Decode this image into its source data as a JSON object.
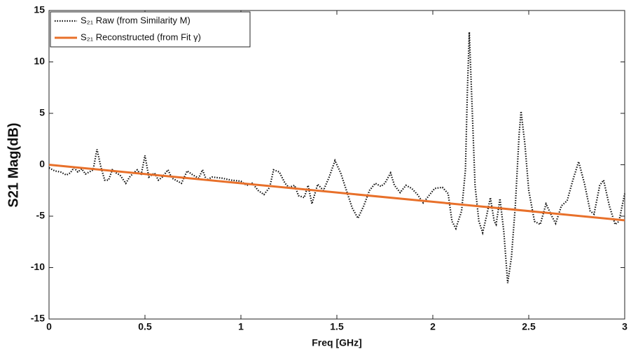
{
  "chart_data": {
    "type": "line",
    "xlabel": "Freq [GHz]",
    "ylabel": "S21 Mag(dB)",
    "xlim": [
      0,
      3
    ],
    "ylim": [
      -15,
      15
    ],
    "xticks": [
      0,
      0.5,
      1,
      1.5,
      2,
      2.5,
      3
    ],
    "yticks": [
      -15,
      -10,
      -5,
      0,
      5,
      10,
      15
    ],
    "legend": "upper left",
    "series": [
      {
        "name": "S₂₁ Raw (from Similarity M)",
        "color": "#111111",
        "style": "dotted",
        "x": [
          0,
          0.03,
          0.06,
          0.09,
          0.11,
          0.13,
          0.15,
          0.17,
          0.19,
          0.21,
          0.23,
          0.25,
          0.27,
          0.29,
          0.31,
          0.33,
          0.35,
          0.37,
          0.4,
          0.42,
          0.44,
          0.46,
          0.48,
          0.5,
          0.52,
          0.55,
          0.57,
          0.59,
          0.62,
          0.64,
          0.66,
          0.69,
          0.72,
          0.75,
          0.78,
          0.8,
          0.82,
          0.85,
          0.9,
          0.95,
          1.0,
          1.03,
          1.06,
          1.09,
          1.12,
          1.15,
          1.17,
          1.2,
          1.23,
          1.25,
          1.28,
          1.3,
          1.33,
          1.35,
          1.37,
          1.4,
          1.43,
          1.46,
          1.49,
          1.52,
          1.55,
          1.58,
          1.61,
          1.64,
          1.67,
          1.7,
          1.73,
          1.75,
          1.78,
          1.8,
          1.83,
          1.86,
          1.89,
          1.92,
          1.95,
          1.98,
          2.01,
          2.05,
          2.08,
          2.1,
          2.12,
          2.15,
          2.17,
          2.18,
          2.19,
          2.2,
          2.22,
          2.24,
          2.26,
          2.28,
          2.3,
          2.32,
          2.33,
          2.35,
          2.37,
          2.39,
          2.41,
          2.43,
          2.45,
          2.46,
          2.48,
          2.5,
          2.53,
          2.56,
          2.59,
          2.62,
          2.64,
          2.67,
          2.7,
          2.73,
          2.76,
          2.79,
          2.82,
          2.84,
          2.87,
          2.89,
          2.92,
          2.95,
          2.97,
          3.0
        ],
        "values": [
          -0.3,
          -0.6,
          -0.7,
          -1.0,
          -0.8,
          -0.3,
          -0.7,
          -0.4,
          -0.9,
          -0.7,
          -0.5,
          1.5,
          -0.2,
          -1.5,
          -1.5,
          -0.5,
          -0.8,
          -1.0,
          -1.8,
          -1.2,
          -0.8,
          -0.5,
          -1.0,
          0.9,
          -1.2,
          -0.8,
          -1.5,
          -1.2,
          -0.5,
          -1.3,
          -1.5,
          -1.8,
          -0.6,
          -1.0,
          -1.3,
          -0.5,
          -1.5,
          -1.2,
          -1.3,
          -1.5,
          -1.6,
          -2.0,
          -1.8,
          -2.5,
          -2.9,
          -2.2,
          -0.5,
          -0.7,
          -1.8,
          -2.2,
          -2.0,
          -3.0,
          -3.2,
          -2.0,
          -3.8,
          -1.9,
          -2.5,
          -1.2,
          0.4,
          -0.8,
          -2.5,
          -4.2,
          -5.2,
          -4.0,
          -2.5,
          -1.8,
          -2.1,
          -1.8,
          -0.8,
          -2.0,
          -2.7,
          -2.0,
          -2.3,
          -2.9,
          -3.7,
          -3.0,
          -2.3,
          -2.2,
          -2.8,
          -5.5,
          -6.2,
          -4.5,
          -0.5,
          7.0,
          12.9,
          8.0,
          -2.0,
          -5.5,
          -6.6,
          -5.0,
          -3.2,
          -5.5,
          -5.8,
          -3.3,
          -6.5,
          -11.5,
          -9.0,
          -4.0,
          3.0,
          5.2,
          2.0,
          -2.5,
          -5.5,
          -5.8,
          -3.8,
          -5.0,
          -5.7,
          -4.0,
          -3.5,
          -1.5,
          0.3,
          -1.8,
          -4.5,
          -4.8,
          -2.0,
          -1.5,
          -4.0,
          -5.8,
          -5.5,
          -2.8
        ]
      },
      {
        "name": "S₂₁ Reconstructed (from Fit γ)",
        "color": "#e8702a",
        "style": "solid",
        "x": [
          0,
          3
        ],
        "values": [
          0,
          -5.4
        ]
      }
    ]
  }
}
